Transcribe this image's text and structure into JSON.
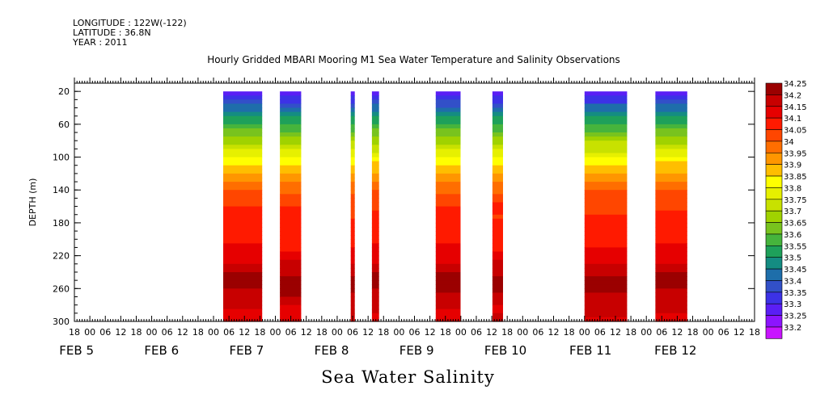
{
  "meta_lines": [
    "LONGITUDE : 122W(-122)",
    "LATITUDE : 36.8N",
    "YEAR : 2011"
  ],
  "title": "Hourly Gridded MBARI Mooring M1 Sea Water Temperature and Salinity Observations",
  "footer": "Sea Water Salinity",
  "chart_data": {
    "type": "heatmap",
    "ylabel": "DEPTH (m)",
    "y_ticks": [
      20,
      60,
      100,
      140,
      180,
      220,
      260,
      300
    ],
    "ylim": [
      300,
      10
    ],
    "x_hour_ticks": [
      "18",
      "00",
      "06",
      "12",
      "18",
      "00",
      "06",
      "12",
      "18",
      "00",
      "06",
      "12",
      "18",
      "00",
      "06",
      "12",
      "18",
      "00",
      "06",
      "12",
      "18",
      "00",
      "06",
      "12",
      "18",
      "00",
      "06",
      "12",
      "18",
      "00",
      "06",
      "12",
      "18",
      "00",
      "06",
      "12",
      "18",
      "00",
      "06",
      "12",
      "18",
      "00",
      "06",
      "12",
      "18"
    ],
    "x_day_labels": [
      "FEB 5",
      "FEB 6",
      "FEB 7",
      "FEB 8",
      "FEB 9",
      "FEB 10",
      "FEB 11",
      "FEB 12"
    ],
    "time_axis_start": "2011-02-04 18:00",
    "time_axis_end": "2011-02-12 18:00",
    "data_segments": [
      {
        "start": "2011-02-06 12:00",
        "end": "2011-02-06 23:00"
      },
      {
        "start": "2011-02-07 04:00",
        "end": "2011-02-07 10:00"
      },
      {
        "start": "2011-02-08 00:00",
        "end": "2011-02-08 01:00"
      },
      {
        "start": "2011-02-08 06:00",
        "end": "2011-02-08 08:00"
      },
      {
        "start": "2011-02-09 00:00",
        "end": "2011-02-09 07:00"
      },
      {
        "start": "2011-02-09 16:00",
        "end": "2011-02-09 19:00"
      },
      {
        "start": "2011-02-10 18:00",
        "end": "2011-02-11 06:00"
      },
      {
        "start": "2011-02-11 14:00",
        "end": "2011-02-11 23:00"
      }
    ],
    "salinity_profile": {
      "depths": [
        20,
        30,
        40,
        50,
        60,
        70,
        80,
        90,
        100,
        110,
        120,
        130,
        140,
        150,
        160,
        180,
        200,
        220,
        235,
        250,
        265,
        280,
        300
      ],
      "salinity": [
        33.25,
        33.33,
        33.42,
        33.5,
        33.55,
        33.62,
        33.68,
        33.74,
        33.8,
        33.86,
        33.9,
        33.95,
        33.99,
        34.02,
        34.05,
        34.06,
        34.08,
        34.12,
        34.17,
        34.22,
        34.2,
        34.16,
        34.14
      ]
    },
    "colorbar": {
      "levels": [
        "34.25",
        "34.2",
        "34.15",
        "34.1",
        "34.05",
        "34",
        "33.95",
        "33.9",
        "33.85",
        "33.8",
        "33.75",
        "33.7",
        "33.65",
        "33.6",
        "33.55",
        "33.5",
        "33.45",
        "33.4",
        "33.35",
        "33.3",
        "33.25",
        "33.2"
      ],
      "colors": [
        "#9b0000",
        "#c80000",
        "#e60000",
        "#ff1a00",
        "#ff4600",
        "#ff6e00",
        "#ff9600",
        "#ffbe00",
        "#ffff00",
        "#e6f000",
        "#c8e100",
        "#a0d200",
        "#78c31e",
        "#46b43c",
        "#1ea05a",
        "#148c82",
        "#1e6eaa",
        "#3250c8",
        "#3c32e6",
        "#5a1ef5",
        "#8c14ff",
        "#c814ff"
      ]
    }
  }
}
